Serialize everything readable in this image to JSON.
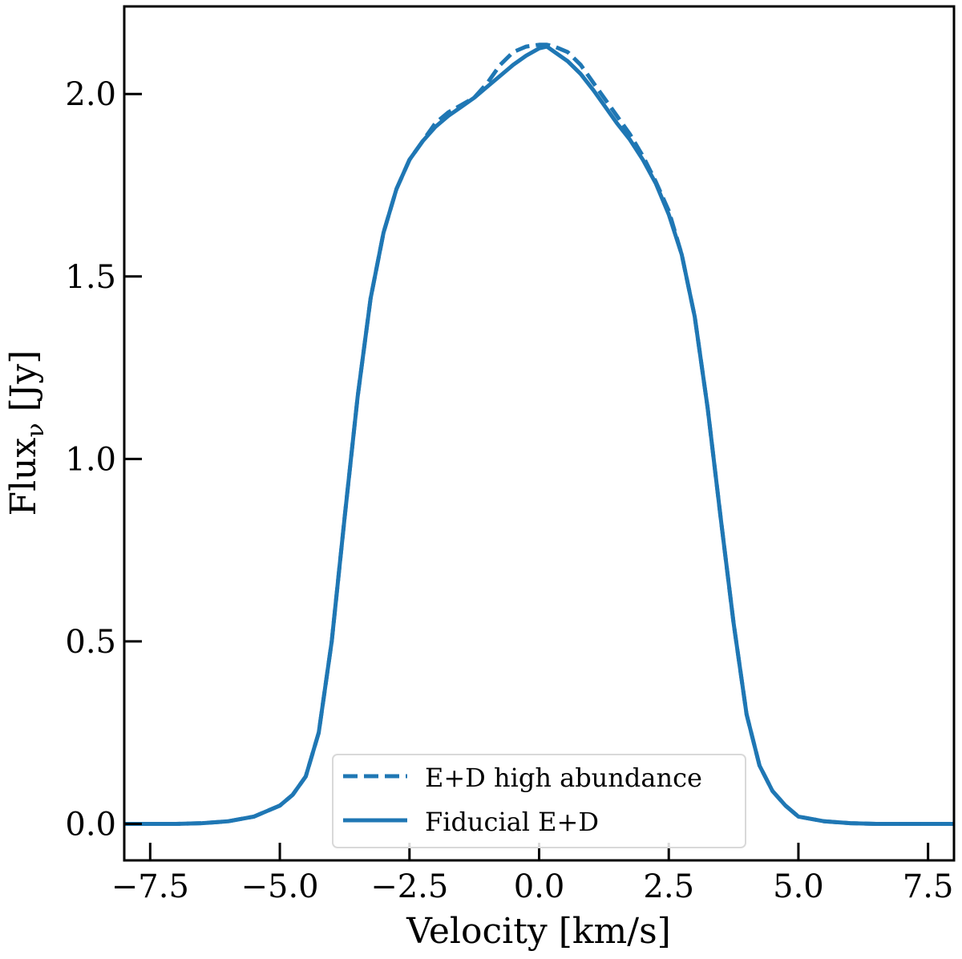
{
  "chart_data": {
    "type": "line",
    "title": "",
    "xlabel": "Velocity [km/s]",
    "ylabel_main": "Flux",
    "ylabel_sub": "ν",
    "ylabel_unit": " [Jy]",
    "xlim": [
      -8.0,
      8.0
    ],
    "ylim": [
      -0.1,
      2.24
    ],
    "xticks": [
      -7.5,
      -5.0,
      -2.5,
      0.0,
      2.5,
      5.0,
      7.5
    ],
    "xtick_labels": [
      "−7.5",
      "−5.0",
      "−2.5",
      "0.0",
      "2.5",
      "5.0",
      "7.5"
    ],
    "yticks": [
      0.0,
      0.5,
      1.0,
      1.5,
      2.0
    ],
    "ytick_labels": [
      "0.0",
      "0.5",
      "1.0",
      "1.5",
      "2.0"
    ],
    "legend_position": "lower-center",
    "series": [
      {
        "name": "E+D high abundance",
        "style": "dashed",
        "color": "#1f77b4",
        "x": [
          -8.0,
          -7.0,
          -6.5,
          -6.0,
          -5.5,
          -5.0,
          -4.75,
          -4.5,
          -4.25,
          -4.0,
          -3.75,
          -3.5,
          -3.25,
          -3.0,
          -2.75,
          -2.5,
          -2.25,
          -2.0,
          -1.75,
          -1.5,
          -1.25,
          -1.0,
          -0.75,
          -0.5,
          -0.25,
          0.0,
          0.15,
          0.3,
          0.55,
          0.8,
          1.05,
          1.3,
          1.5,
          1.75,
          2.0,
          2.25,
          2.5,
          2.75,
          3.0,
          3.25,
          3.5,
          3.75,
          4.0,
          4.25,
          4.5,
          4.75,
          5.0,
          5.5,
          6.0,
          6.5,
          7.0,
          8.0
        ],
        "y": [
          0.0,
          0.0,
          0.002,
          0.007,
          0.02,
          0.05,
          0.08,
          0.13,
          0.25,
          0.5,
          0.84,
          1.17,
          1.44,
          1.62,
          1.74,
          1.82,
          1.87,
          1.92,
          1.95,
          1.97,
          1.99,
          2.03,
          2.08,
          2.115,
          2.13,
          2.135,
          2.135,
          2.13,
          2.115,
          2.08,
          2.03,
          1.98,
          1.94,
          1.89,
          1.83,
          1.76,
          1.68,
          1.56,
          1.39,
          1.14,
          0.84,
          0.55,
          0.3,
          0.16,
          0.09,
          0.05,
          0.02,
          0.007,
          0.002,
          0.0,
          0.0,
          0.0
        ]
      },
      {
        "name": "Fiducial E+D",
        "style": "solid",
        "color": "#1f77b4",
        "x": [
          -8.0,
          -7.0,
          -6.5,
          -6.0,
          -5.5,
          -5.0,
          -4.75,
          -4.5,
          -4.25,
          -4.0,
          -3.75,
          -3.5,
          -3.25,
          -3.0,
          -2.75,
          -2.5,
          -2.25,
          -2.0,
          -1.75,
          -1.5,
          -1.25,
          -1.0,
          -0.75,
          -0.5,
          -0.25,
          0.0,
          0.15,
          0.3,
          0.55,
          0.8,
          1.05,
          1.3,
          1.5,
          1.75,
          2.0,
          2.25,
          2.5,
          2.75,
          3.0,
          3.25,
          3.5,
          3.75,
          4.0,
          4.25,
          4.5,
          4.75,
          5.0,
          5.5,
          6.0,
          6.5,
          7.0,
          8.0
        ],
        "y": [
          0.0,
          0.0,
          0.002,
          0.007,
          0.02,
          0.05,
          0.08,
          0.13,
          0.25,
          0.5,
          0.84,
          1.17,
          1.44,
          1.62,
          1.74,
          1.82,
          1.87,
          1.91,
          1.94,
          1.965,
          1.99,
          2.02,
          2.05,
          2.08,
          2.105,
          2.125,
          2.13,
          2.115,
          2.09,
          2.055,
          2.01,
          1.96,
          1.92,
          1.875,
          1.82,
          1.755,
          1.67,
          1.56,
          1.39,
          1.14,
          0.84,
          0.55,
          0.3,
          0.16,
          0.09,
          0.05,
          0.02,
          0.007,
          0.002,
          0.0,
          0.0,
          0.0
        ]
      }
    ]
  }
}
